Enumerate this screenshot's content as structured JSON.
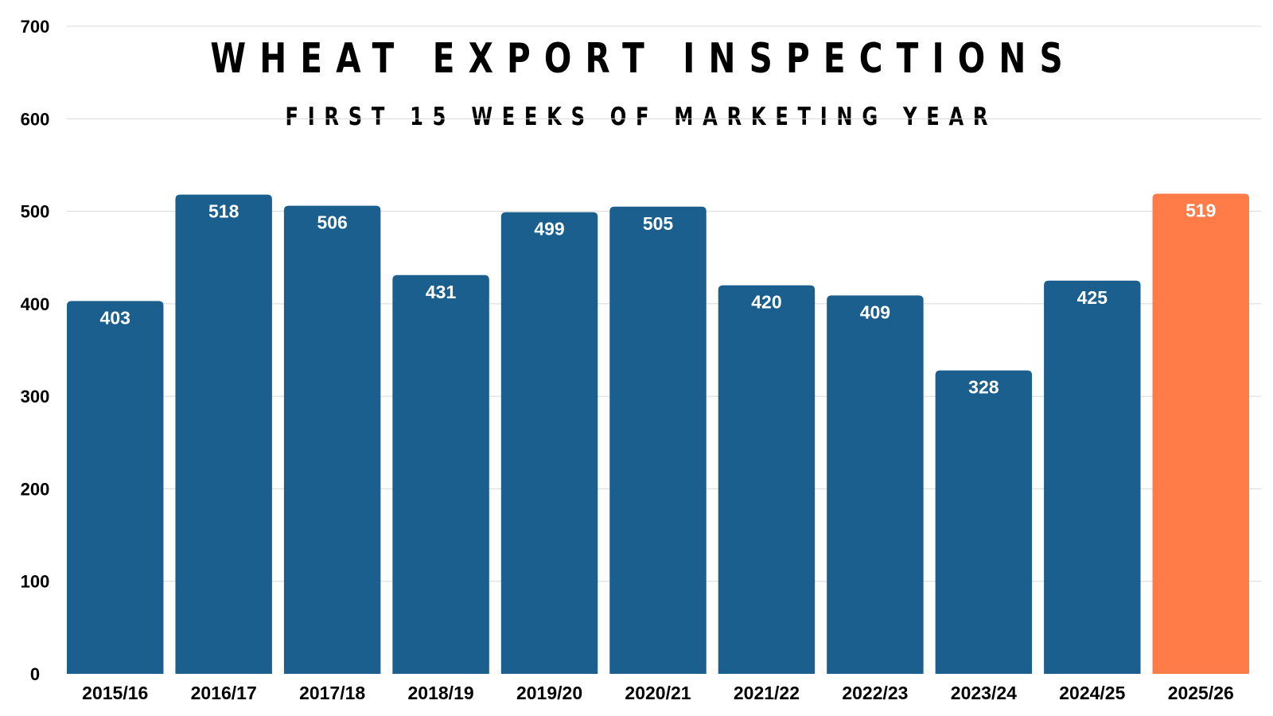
{
  "title": "WHEAT EXPORT INSPECTIONS",
  "subtitle": "FIRST 15 WEEKS OF MARKETING YEAR",
  "colors": {
    "bar": "#1a5f8e",
    "highlight_bar": "#ff7c48",
    "grid": "#d9d9d9",
    "text": "#000000",
    "data_label": "#ffffff"
  },
  "chart_data": {
    "type": "bar",
    "title": "WHEAT EXPORT INSPECTIONS",
    "subtitle": "FIRST 15 WEEKS OF MARKETING YEAR",
    "xlabel": "",
    "ylabel": "",
    "categories": [
      "2015/16",
      "2016/17",
      "2017/18",
      "2018/19",
      "2019/20",
      "2020/21",
      "2021/22",
      "2022/23",
      "2023/24",
      "2024/25",
      "2025/26"
    ],
    "values": [
      403,
      518,
      506,
      431,
      499,
      505,
      420,
      409,
      328,
      425,
      519
    ],
    "highlighted_category": "2025/26",
    "ylim": [
      0,
      700
    ],
    "yticks": [
      0,
      100,
      200,
      300,
      400,
      500,
      600,
      700
    ],
    "grid": true,
    "legend": "none"
  }
}
